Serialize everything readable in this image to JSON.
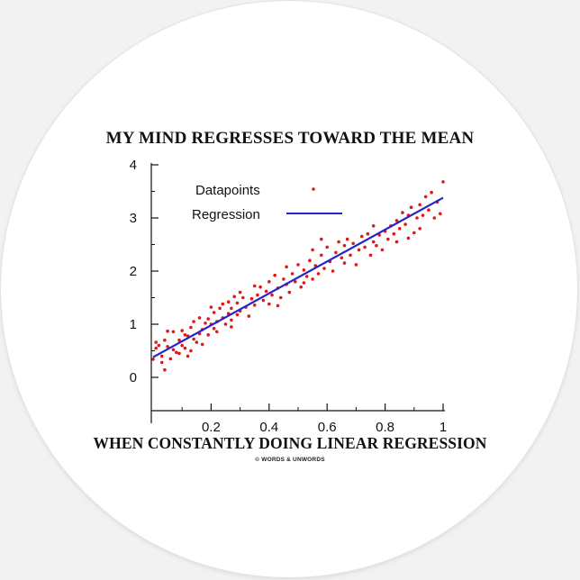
{
  "sticker": {
    "top_text": "MY MIND REGRESSES TOWARD THE MEAN",
    "bottom_text": "WHEN CONSTANTLY DOING LINEAR REGRESSION",
    "credit": "© WORDS & UNWORDS"
  },
  "colors": {
    "datapoints": "#e01818",
    "regression": "#2424c8",
    "axis": "#111111"
  },
  "chart_data": {
    "type": "scatter",
    "xlim": [
      0,
      1
    ],
    "ylim": [
      0,
      4
    ],
    "x_ticks": [
      0.2,
      0.4,
      0.6,
      0.8,
      1
    ],
    "x_tick_labels": [
      "0.2",
      "0.4",
      "0.6",
      "0.8",
      "1"
    ],
    "y_ticks": [
      0,
      1,
      2,
      3,
      4
    ],
    "y_tick_labels": [
      "0",
      "1",
      "2",
      "3",
      "4"
    ],
    "grid": false,
    "legend_placement": "top-left",
    "series": [
      {
        "name": "Datapoints",
        "kind": "scatter",
        "points": [
          [
            0.0,
            0.34
          ],
          [
            0.01,
            0.66
          ],
          [
            0.01,
            0.55
          ],
          [
            0.02,
            0.6
          ],
          [
            0.03,
            0.28
          ],
          [
            0.03,
            0.4
          ],
          [
            0.04,
            0.14
          ],
          [
            0.04,
            0.7
          ],
          [
            0.05,
            0.58
          ],
          [
            0.05,
            0.87
          ],
          [
            0.06,
            0.35
          ],
          [
            0.07,
            0.52
          ],
          [
            0.07,
            0.86
          ],
          [
            0.08,
            0.47
          ],
          [
            0.09,
            0.45
          ],
          [
            0.09,
            0.7
          ],
          [
            0.1,
            0.88
          ],
          [
            0.1,
            0.6
          ],
          [
            0.11,
            0.8
          ],
          [
            0.11,
            0.55
          ],
          [
            0.12,
            0.78
          ],
          [
            0.13,
            0.5
          ],
          [
            0.13,
            0.94
          ],
          [
            0.14,
            0.72
          ],
          [
            0.14,
            1.05
          ],
          [
            0.15,
            0.66
          ],
          [
            0.16,
            0.82
          ],
          [
            0.16,
            1.12
          ],
          [
            0.17,
            0.9
          ],
          [
            0.17,
            0.62
          ],
          [
            0.18,
            1.02
          ],
          [
            0.19,
            0.8
          ],
          [
            0.19,
            1.1
          ],
          [
            0.2,
            1.0
          ],
          [
            0.21,
            0.92
          ],
          [
            0.21,
            1.22
          ],
          [
            0.22,
            1.05
          ],
          [
            0.22,
            0.86
          ],
          [
            0.23,
            1.3
          ],
          [
            0.24,
            1.12
          ],
          [
            0.24,
            1.38
          ],
          [
            0.25,
            1.0
          ],
          [
            0.26,
            1.2
          ],
          [
            0.26,
            1.42
          ],
          [
            0.27,
            1.08
          ],
          [
            0.27,
            1.3
          ],
          [
            0.28,
            1.52
          ],
          [
            0.29,
            1.18
          ],
          [
            0.29,
            1.4
          ],
          [
            0.3,
            1.25
          ],
          [
            0.3,
            1.6
          ],
          [
            0.31,
            1.5
          ],
          [
            0.32,
            1.32
          ],
          [
            0.33,
            1.15
          ],
          [
            0.34,
            1.48
          ],
          [
            0.35,
            1.36
          ],
          [
            0.36,
            1.55
          ],
          [
            0.37,
            1.7
          ],
          [
            0.38,
            1.45
          ],
          [
            0.39,
            1.62
          ],
          [
            0.4,
            1.38
          ],
          [
            0.4,
            1.8
          ],
          [
            0.41,
            1.55
          ],
          [
            0.42,
            1.92
          ],
          [
            0.43,
            1.68
          ],
          [
            0.44,
            1.5
          ],
          [
            0.45,
            1.85
          ],
          [
            0.46,
            1.75
          ],
          [
            0.46,
            2.08
          ],
          [
            0.47,
            1.6
          ],
          [
            0.48,
            1.95
          ],
          [
            0.49,
            1.8
          ],
          [
            0.5,
            2.12
          ],
          [
            0.51,
            1.7
          ],
          [
            0.52,
            2.02
          ],
          [
            0.53,
            1.9
          ],
          [
            0.54,
            2.2
          ],
          [
            0.55,
            1.85
          ],
          [
            0.55,
            2.4
          ],
          [
            0.56,
            2.1
          ],
          [
            0.57,
            1.95
          ],
          [
            0.58,
            2.3
          ],
          [
            0.59,
            2.05
          ],
          [
            0.6,
            2.45
          ],
          [
            0.61,
            2.18
          ],
          [
            0.62,
            2.0
          ],
          [
            0.63,
            2.35
          ],
          [
            0.64,
            2.55
          ],
          [
            0.65,
            2.25
          ],
          [
            0.66,
            2.48
          ],
          [
            0.67,
            2.6
          ],
          [
            0.68,
            2.3
          ],
          [
            0.69,
            2.52
          ],
          [
            0.7,
            2.12
          ],
          [
            0.71,
            2.4
          ],
          [
            0.72,
            2.65
          ],
          [
            0.73,
            2.45
          ],
          [
            0.74,
            2.7
          ],
          [
            0.75,
            2.3
          ],
          [
            0.76,
            2.55
          ],
          [
            0.77,
            2.48
          ],
          [
            0.78,
            2.68
          ],
          [
            0.79,
            2.4
          ],
          [
            0.8,
            2.75
          ],
          [
            0.81,
            2.6
          ],
          [
            0.82,
            2.85
          ],
          [
            0.83,
            2.7
          ],
          [
            0.84,
            2.95
          ],
          [
            0.85,
            2.8
          ],
          [
            0.86,
            3.1
          ],
          [
            0.87,
            2.88
          ],
          [
            0.88,
            2.62
          ],
          [
            0.88,
            3.05
          ],
          [
            0.89,
            3.2
          ],
          [
            0.9,
            2.72
          ],
          [
            0.91,
            3.0
          ],
          [
            0.92,
            3.25
          ],
          [
            0.92,
            2.8
          ],
          [
            0.93,
            3.05
          ],
          [
            0.94,
            3.4
          ],
          [
            0.95,
            3.15
          ],
          [
            0.96,
            3.48
          ],
          [
            0.97,
            3.0
          ],
          [
            0.98,
            3.3
          ],
          [
            0.99,
            3.08
          ],
          [
            1.0,
            3.68
          ],
          [
            0.43,
            1.35
          ],
          [
            0.52,
            1.78
          ],
          [
            0.58,
            2.6
          ],
          [
            0.66,
            2.15
          ],
          [
            0.35,
            1.72
          ],
          [
            0.27,
            0.95
          ],
          [
            0.76,
            2.85
          ],
          [
            0.84,
            2.55
          ],
          [
            0.2,
            1.32
          ],
          [
            0.12,
            0.4
          ]
        ]
      },
      {
        "name": "Regression",
        "kind": "line",
        "points": [
          [
            0,
            0.38
          ],
          [
            1,
            3.38
          ]
        ]
      }
    ]
  }
}
